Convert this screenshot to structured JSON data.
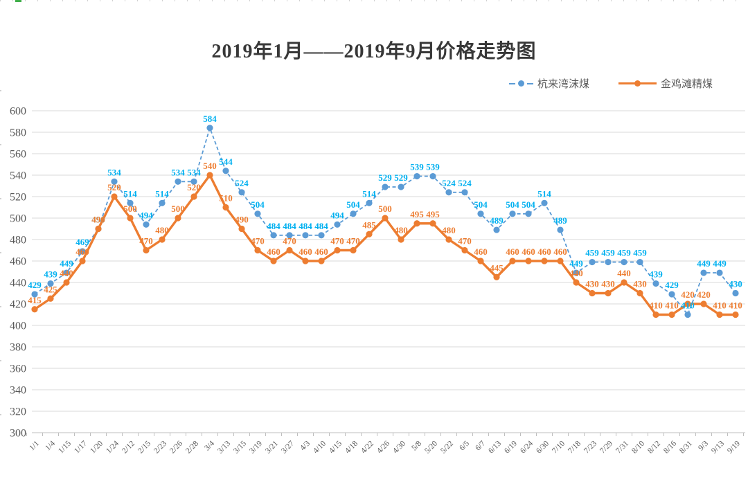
{
  "chart_data": {
    "type": "line",
    "title": "2019年1月——2019年9月价格走势图",
    "xlabel": "",
    "ylabel": "",
    "ylim": [
      300,
      600
    ],
    "ytick_step": 20,
    "grid": "on",
    "legend_position": "top-right",
    "grid_color": "#d9d9d9",
    "axis_color": "#bfbfbf",
    "tick_label_color": "#595959",
    "categories": [
      "1/1",
      "1/4",
      "1/15",
      "1/17",
      "1/20",
      "1/24",
      "2/12",
      "2/15",
      "2/23",
      "2/26",
      "2/28",
      "3/4",
      "3/13",
      "3/15",
      "3/19",
      "3/21",
      "3/27",
      "4/3",
      "4/10",
      "4/15",
      "4/18",
      "4/22",
      "4/26",
      "4/30",
      "5/8",
      "5/20",
      "5/22",
      "6/5",
      "6/7",
      "6/13",
      "6/19",
      "6/24",
      "6/30",
      "7/10",
      "7/18",
      "7/23",
      "7/29",
      "7/31",
      "8/10",
      "8/12",
      "8/16",
      "8/31",
      "9/3",
      "9/13",
      "9/19"
    ],
    "series": [
      {
        "name": "杭来湾沫煤",
        "color": "#5b9bd5",
        "label_color": "#00b0f0",
        "dashed": true,
        "values": [
          429,
          439,
          449,
          469,
          490,
          534,
          514,
          494,
          514,
          534,
          534,
          584,
          544,
          524,
          504,
          484,
          484,
          484,
          484,
          494,
          504,
          514,
          529,
          529,
          539,
          539,
          524,
          524,
          504,
          489,
          504,
          504,
          514,
          489,
          449,
          459,
          459,
          459,
          459,
          439,
          429,
          410,
          449,
          449,
          430
        ]
      },
      {
        "name": "金鸡滩精煤",
        "color": "#ed7d31",
        "label_color": "#ed7d31",
        "dashed": false,
        "values": [
          415,
          425,
          440,
          460,
          490,
          520,
          500,
          470,
          480,
          500,
          520,
          540,
          510,
          490,
          470,
          460,
          470,
          460,
          460,
          470,
          470,
          485,
          500,
          480,
          495,
          495,
          480,
          470,
          460,
          445,
          460,
          460,
          460,
          460,
          440,
          430,
          430,
          440,
          430,
          410,
          410,
          420,
          420,
          410,
          410
        ]
      }
    ]
  }
}
